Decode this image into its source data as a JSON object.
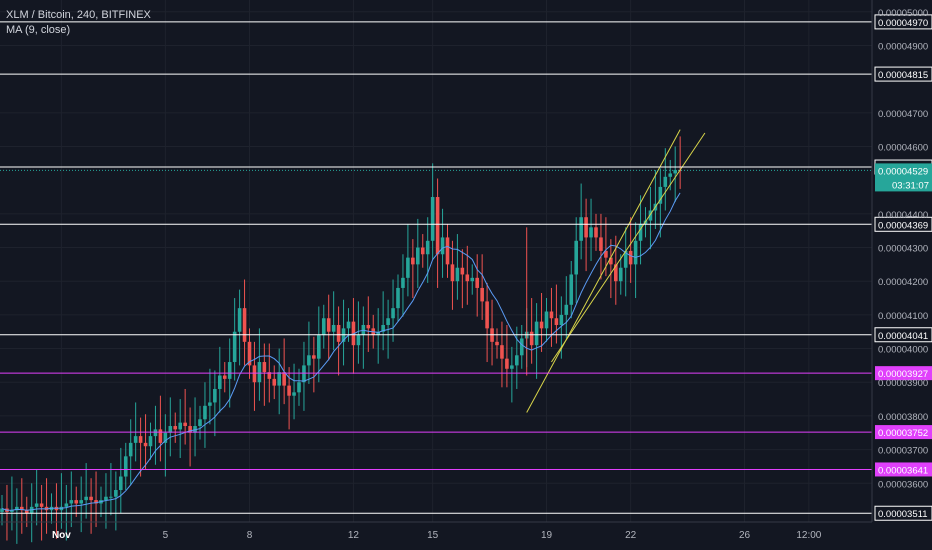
{
  "header": {
    "title": "XLM / Bitcoin, 240, BITFINEX",
    "indicator": "MA (9, close)"
  },
  "colors": {
    "background": "#131722",
    "grid": "#1e222d",
    "up": "#26a69a",
    "down": "#ef5350",
    "ma": "#5b9cf6",
    "white_level": "#ffffff",
    "magenta_level": "#e040fb",
    "channel": "#d9d54a",
    "price_tag": "#26a69a",
    "axis_text": "#b2b5be"
  },
  "chart_data": {
    "type": "candlestick",
    "symbol": "XLM / Bitcoin",
    "interval": "240",
    "exchange": "BITFINEX",
    "indicator": "MA (9, close)",
    "ylim": [
      3.485e-05,
      5.035e-05
    ],
    "x_ticks": [
      "Nov",
      "5",
      "8",
      "12",
      "15",
      "19",
      "22",
      "26",
      "12:00"
    ],
    "y_ticks": [
      "0.00005000",
      "0.00004900",
      "0.00004700",
      "0.00004600",
      "0.00004400",
      "0.00004300",
      "0.00004200",
      "0.00004100",
      "0.00004000",
      "0.00003900",
      "0.00003800",
      "0.00003700",
      "0.00003600"
    ],
    "levels": [
      {
        "label": "0.00004970",
        "value": 4.97e-05,
        "color": "white"
      },
      {
        "label": "0.00004815",
        "value": 4.815e-05,
        "color": "white"
      },
      {
        "label": "0.00004539",
        "value": 4.539e-05,
        "color": "white"
      },
      {
        "label": "0.00004369",
        "value": 4.369e-05,
        "color": "white"
      },
      {
        "label": "0.00004041",
        "value": 4.041e-05,
        "color": "white"
      },
      {
        "label": "0.00003927",
        "value": 3.927e-05,
        "color": "magenta"
      },
      {
        "label": "0.00003752",
        "value": 3.752e-05,
        "color": "magenta"
      },
      {
        "label": "0.00003641",
        "value": 3.641e-05,
        "color": "magenta"
      },
      {
        "label": "0.00003511",
        "value": 3.511e-05,
        "color": "white"
      }
    ],
    "last_price": {
      "label": "0.00004529",
      "value": 4.529e-05,
      "countdown": "03:31:07"
    },
    "channel_lines": [
      {
        "from": {
          "bar": 106,
          "price": 3.81e-05
        },
        "to": {
          "bar": 137,
          "price": 4.65e-05
        }
      },
      {
        "from": {
          "bar": 111,
          "price": 3.96e-05
        },
        "to": {
          "bar": 142,
          "price": 4.64e-05
        }
      }
    ],
    "ohlc_close_path": [
      3.525e-05,
      3.515e-05,
      3.52e-05,
      3.53e-05,
      3.52e-05,
      3.51e-05,
      3.53e-05,
      3.54e-05,
      3.53e-05,
      3.52e-05,
      3.53e-05,
      3.52e-05,
      3.53e-05,
      3.54e-05,
      3.55e-05,
      3.54e-05,
      3.55e-05,
      3.56e-05,
      3.55e-05,
      3.54e-05,
      3.55e-05,
      3.56e-05,
      3.56e-05,
      3.58e-05,
      3.62e-05,
      3.68e-05,
      3.72e-05,
      3.74e-05,
      3.72e-05,
      3.71e-05,
      3.74e-05,
      3.76e-05,
      3.72e-05,
      3.75e-05,
      3.77e-05,
      3.76e-05,
      3.78e-05,
      3.77e-05,
      3.75e-05,
      3.77e-05,
      3.79e-05,
      3.83e-05,
      3.84e-05,
      3.88e-05,
      3.92e-05,
      3.91e-05,
      3.96e-05,
      4.05e-05,
      4.12e-05,
      4.02e-05,
      3.95e-05,
      3.9e-05,
      3.96e-05,
      3.93e-05,
      3.91e-05,
      3.89e-05,
      3.93e-05,
      3.89e-05,
      3.86e-05,
      3.87e-05,
      3.9e-05,
      3.95e-05,
      3.98e-05,
      3.97e-05,
      4.04e-05,
      4.09e-05,
      4.05e-05,
      4.07e-05,
      4.02e-05,
      4.06e-05,
      4.08e-05,
      4.01e-05,
      4.04e-05,
      4.07e-05,
      4.06e-05,
      4.04e-05,
      4.05e-05,
      4.07e-05,
      4.09e-05,
      4.12e-05,
      4.18e-05,
      4.21e-05,
      4.27e-05,
      4.25e-05,
      4.3e-05,
      4.28e-05,
      4.32e-05,
      4.45e-05,
      4.28e-05,
      4.33e-05,
      4.25e-05,
      4.2e-05,
      4.24e-05,
      4.22e-05,
      4.2e-05,
      4.21e-05,
      4.18e-05,
      4.14e-05,
      4.06e-05,
      4.02e-05,
      4.01e-05,
      3.97e-05,
      3.94e-05,
      3.95e-05,
      3.98e-05,
      4.03e-05,
      4.05e-05,
      4.01e-05,
      4.08e-05,
      4.06e-05,
      4.11e-05,
      4.09e-05,
      4.07e-05,
      4.1e-05,
      4.13e-05,
      4.22e-05,
      4.32e-05,
      4.39e-05,
      4.33e-05,
      4.36e-05,
      4.33e-05,
      4.29e-05,
      4.27e-05,
      4.25e-05,
      4.2e-05,
      4.24e-05,
      4.29e-05,
      4.25e-05,
      4.32e-05,
      4.37e-05,
      4.38e-05,
      4.41e-05,
      4.43e-05,
      4.48e-05,
      4.51e-05,
      4.52e-05,
      4.53e-05,
      4.529e-05
    ]
  },
  "axis": {
    "price_ticks_visible": "price axis",
    "time_axis": "time axis"
  }
}
